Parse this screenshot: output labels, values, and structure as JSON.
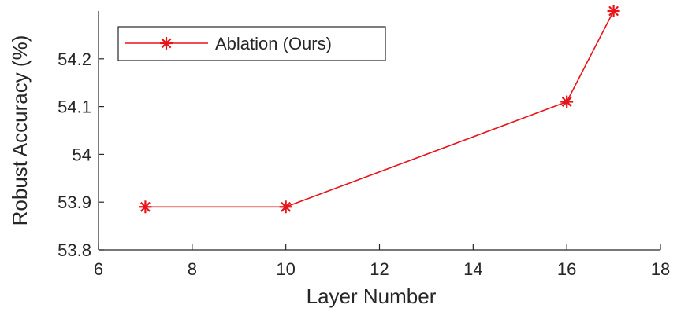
{
  "chart_data": {
    "type": "line",
    "xlabel": "Layer Number",
    "ylabel": "Robust Accuracy (%)",
    "xlim": [
      6,
      18
    ],
    "ylim": [
      53.8,
      54.3
    ],
    "xticks": [
      6,
      8,
      10,
      12,
      14,
      16,
      18
    ],
    "yticks": [
      53.8,
      53.9,
      54,
      54.1,
      54.2
    ],
    "xtick_labels": [
      "6",
      "8",
      "10",
      "12",
      "14",
      "16",
      "18"
    ],
    "ytick_labels": [
      "53.8",
      "53.9",
      "54",
      "54.1",
      "54.2"
    ],
    "grid": false,
    "legend_position": "top-left",
    "series": [
      {
        "name": "Ablation (Ours)",
        "color": "#e8141a",
        "marker": "asterisk",
        "x": [
          7,
          10,
          16,
          17
        ],
        "y": [
          53.89,
          53.89,
          54.11,
          54.3
        ]
      }
    ]
  }
}
